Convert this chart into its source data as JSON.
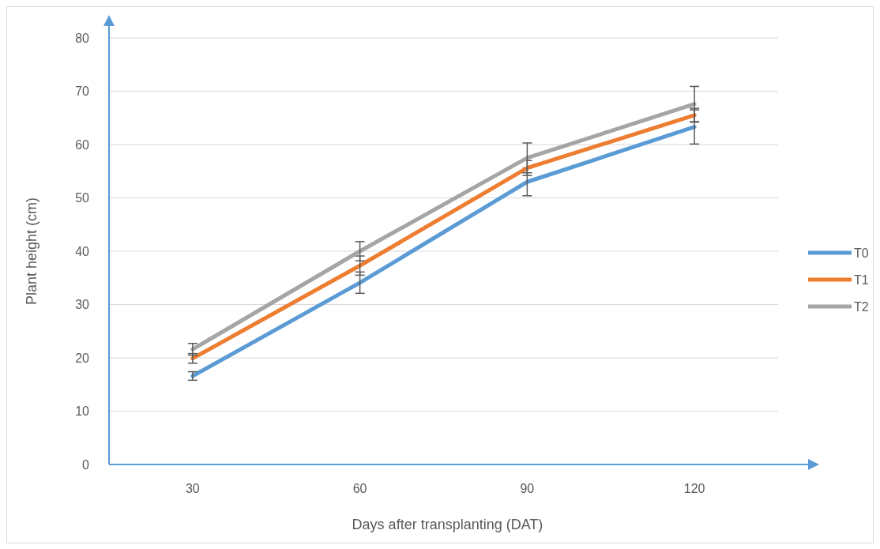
{
  "chart_data": {
    "type": "line",
    "xlabel": "Days after transplanting (DAT)",
    "ylabel": "Plant height (cm)",
    "categories": [
      "30",
      "60",
      "90",
      "120"
    ],
    "ylim": [
      0,
      80
    ],
    "yticks": [
      0,
      10,
      20,
      30,
      40,
      50,
      60,
      70,
      80
    ],
    "grid": "y",
    "legend": "right",
    "marker": "none",
    "line_style": "solid",
    "series": [
      {
        "name": "T0",
        "color": "#5b9bd5",
        "values": [
          16.6,
          34.1,
          53.0,
          63.3
        ],
        "errors": [
          0.8,
          2.0,
          2.6,
          3.2
        ]
      },
      {
        "name": "T1",
        "color": "#ed7d31",
        "values": [
          19.9,
          37.3,
          55.6,
          65.5
        ],
        "errors": [
          0.9,
          1.8,
          1.4,
          1.3
        ]
      },
      {
        "name": "T2",
        "color": "#a5a5a5",
        "values": [
          21.6,
          40.0,
          57.5,
          67.6
        ],
        "errors": [
          1.1,
          1.8,
          2.8,
          3.3
        ]
      }
    ]
  }
}
